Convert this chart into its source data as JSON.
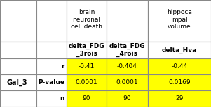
{
  "col_headers_line1": [
    "",
    "",
    "brain",
    "",
    "hippoca"
  ],
  "col_headers_line2": [
    "",
    "",
    "neuronal",
    "",
    "mpal"
  ],
  "col_headers_line3": [
    "",
    "",
    "cell death",
    "",
    "volume"
  ],
  "col_headers_bold": [
    "",
    "",
    "delta_FDG\n_3rois",
    "delta_FDG\n_4rois",
    "delta_Hva"
  ],
  "row_label": "Gal_3",
  "row_sublabels": [
    "r",
    "P-value",
    "n"
  ],
  "data_values": [
    [
      "-0.41",
      "-0.404",
      "-0.44"
    ],
    [
      "0.0001",
      "0.0001",
      "0.0169"
    ],
    [
      "90",
      "90",
      "29"
    ]
  ],
  "highlight_color": "#FFFF00",
  "header_bg": "#FFFFFF",
  "border_color": "#888888",
  "text_color": "#000000",
  "bold_col_bg": "#FFFFFF"
}
